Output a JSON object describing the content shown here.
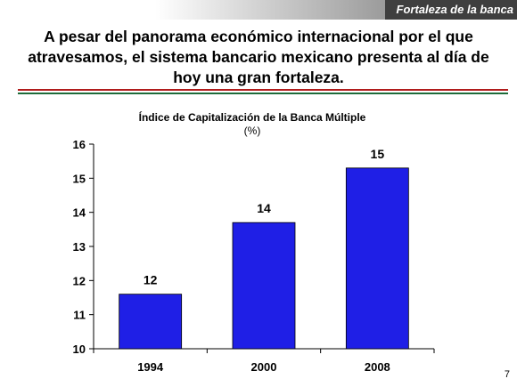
{
  "header": {
    "section_tag": "Fortaleza de la banca"
  },
  "headline": "A pesar del panorama económico internacional por el que atravesamos, el sistema bancario mexicano presenta al día de hoy una gran fortaleza.",
  "page_number": "7",
  "colors": {
    "bar": "#1f1fe6",
    "rule_red": "#b01c1c",
    "rule_green": "#1d6b3a"
  },
  "chart_data": {
    "type": "bar",
    "title": "Índice de Capitalización de la Banca Múltiple",
    "subtitle": "(%)",
    "categories": [
      "1994",
      "2000",
      "2008"
    ],
    "values": [
      11.6,
      13.7,
      15.3
    ],
    "data_labels": [
      "12",
      "14",
      "15"
    ],
    "ylim": [
      10,
      16
    ],
    "yticks": [
      10,
      11,
      12,
      13,
      14,
      15,
      16
    ],
    "grid": false,
    "legend": "none"
  }
}
